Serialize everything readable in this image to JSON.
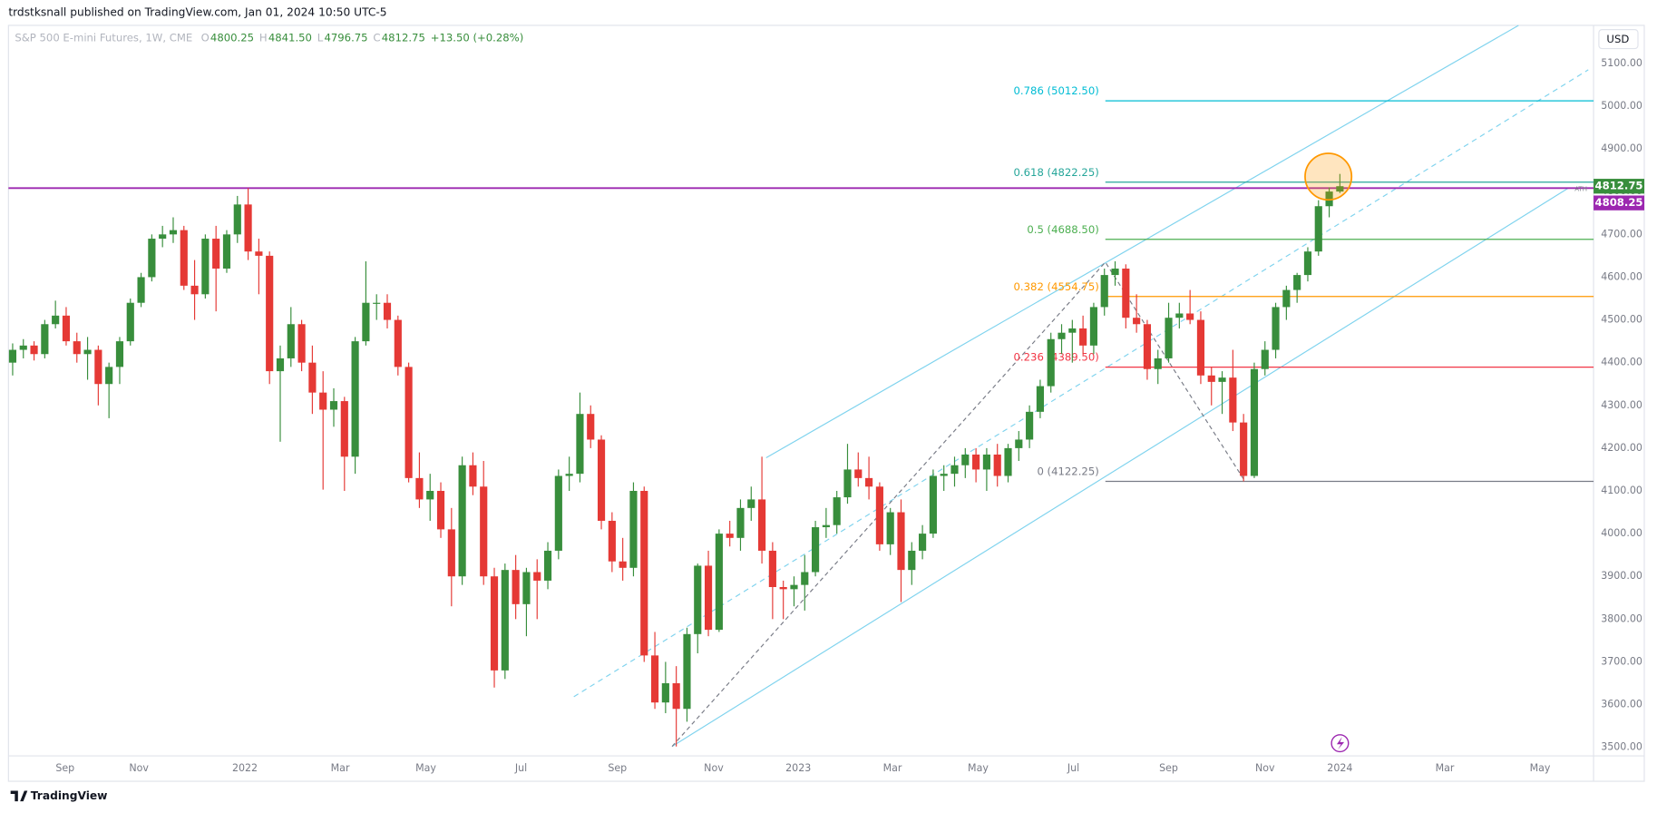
{
  "header": "trdstksnall published on TradingView.com, Jan 01, 2024 10:50 UTC-5",
  "footer": "TradingView",
  "chart_data": {
    "type": "candlestick",
    "symbol": "S&P 500 E-mini Futures, 1W, CME",
    "legend_items": [
      {
        "key": "O",
        "value": "4800.25"
      },
      {
        "key": "H",
        "value": "4841.50"
      },
      {
        "key": "L",
        "value": "4796.75"
      },
      {
        "key": "C",
        "value": "4812.75"
      }
    ],
    "change": "+13.50 (+0.28%)",
    "currency": "USD",
    "up_color": "#388e3c",
    "down_color": "#e53935",
    "xlim": [
      -0.39,
      147.7
    ],
    "xticks": [
      {
        "value": 4.9,
        "label": "Sep"
      },
      {
        "value": 11.8,
        "label": "Nov"
      },
      {
        "value": 21.7,
        "label": "2022"
      },
      {
        "value": 30.6,
        "label": "Mar"
      },
      {
        "value": 38.6,
        "label": "May"
      },
      {
        "value": 47.5,
        "label": "Jul"
      },
      {
        "value": 56.5,
        "label": "Sep"
      },
      {
        "value": 65.5,
        "label": "Nov"
      },
      {
        "value": 73.4,
        "label": "2023"
      },
      {
        "value": 82.2,
        "label": "Mar"
      },
      {
        "value": 90.2,
        "label": "May"
      },
      {
        "value": 99.1,
        "label": "Jul"
      },
      {
        "value": 108,
        "label": "Sep"
      },
      {
        "value": 117,
        "label": "Nov"
      },
      {
        "value": 124,
        "label": "2024"
      },
      {
        "value": 133.8,
        "label": "Mar"
      },
      {
        "value": 142.7,
        "label": "May"
      }
    ],
    "ylim": [
      3480,
      5189
    ],
    "yticks": [
      {
        "value": 3500,
        "label": "3500.00"
      },
      {
        "value": 3600,
        "label": "3600.00"
      },
      {
        "value": 3700,
        "label": "3700.00"
      },
      {
        "value": 3800,
        "label": "3800.00"
      },
      {
        "value": 3900,
        "label": "3900.00"
      },
      {
        "value": 4000,
        "label": "4000.00"
      },
      {
        "value": 4100,
        "label": "4100.00"
      },
      {
        "value": 4200,
        "label": "4200.00"
      },
      {
        "value": 4300,
        "label": "4300.00"
      },
      {
        "value": 4400,
        "label": "4400.00"
      },
      {
        "value": 4500,
        "label": "4500.00"
      },
      {
        "value": 4600,
        "label": "4600.00"
      },
      {
        "value": 4700,
        "label": "4700.00"
      },
      {
        "value": 4800,
        "label": "4800.00"
      },
      {
        "value": 4900,
        "label": "4900.00"
      },
      {
        "value": 5000,
        "label": "5000.00"
      },
      {
        "value": 5100,
        "label": "5100.00"
      }
    ],
    "grid": false,
    "ath": {
      "label": "ATH",
      "price": 4808.25,
      "color": "#9c27b0"
    },
    "fib_levels": [
      {
        "label": "0.786 (5012.50)",
        "price": 5012.5,
        "color": "#00bcd4"
      },
      {
        "label": "0.618 (4822.25)",
        "price": 4822.25,
        "color": "#26a69a"
      },
      {
        "label": "0.5 (4688.50)",
        "price": 4688.5,
        "color": "#4caf50"
      },
      {
        "label": "0.382 (4554.75)",
        "price": 4554.75,
        "color": "#ff9800"
      },
      {
        "label": "0.236 (4389.50)",
        "price": 4389.5,
        "color": "#f23645"
      },
      {
        "label": "0 (4122.25)",
        "price": 4122.25,
        "color": "#787b86"
      }
    ],
    "candles": [
      [
        4400,
        4445,
        4370,
        4430
      ],
      [
        4430,
        4455,
        4410,
        4440
      ],
      [
        4440,
        4450,
        4405,
        4420
      ],
      [
        4420,
        4500,
        4410,
        4490
      ],
      [
        4490,
        4545,
        4480,
        4510
      ],
      [
        4510,
        4530,
        4440,
        4450
      ],
      [
        4450,
        4470,
        4400,
        4420
      ],
      [
        4420,
        4460,
        4360,
        4430
      ],
      [
        4430,
        4440,
        4300,
        4350
      ],
      [
        4350,
        4400,
        4270,
        4390
      ],
      [
        4390,
        4460,
        4350,
        4450
      ],
      [
        4450,
        4550,
        4440,
        4540
      ],
      [
        4540,
        4610,
        4530,
        4600
      ],
      [
        4600,
        4700,
        4590,
        4690
      ],
      [
        4690,
        4720,
        4670,
        4700
      ],
      [
        4700,
        4740,
        4680,
        4710
      ],
      [
        4710,
        4720,
        4570,
        4580
      ],
      [
        4580,
        4640,
        4500,
        4560
      ],
      [
        4560,
        4700,
        4550,
        4690
      ],
      [
        4690,
        4720,
        4520,
        4620
      ],
      [
        4620,
        4710,
        4610,
        4700
      ],
      [
        4700,
        4790,
        4680,
        4770
      ],
      [
        4770,
        4808.25,
        4640,
        4660
      ],
      [
        4660,
        4690,
        4560,
        4650
      ],
      [
        4650,
        4660,
        4350,
        4380
      ],
      [
        4380,
        4440,
        4215,
        4410
      ],
      [
        4410,
        4530,
        4390,
        4490
      ],
      [
        4490,
        4500,
        4380,
        4400
      ],
      [
        4400,
        4440,
        4280,
        4330
      ],
      [
        4330,
        4380,
        4103,
        4290
      ],
      [
        4290,
        4340,
        4250,
        4310
      ],
      [
        4310,
        4320,
        4100,
        4180
      ],
      [
        4180,
        4460,
        4140,
        4450
      ],
      [
        4450,
        4637,
        4440,
        4540
      ],
      [
        4540,
        4560,
        4500,
        4540
      ],
      [
        4540,
        4560,
        4480,
        4500
      ],
      [
        4500,
        4510,
        4370,
        4390
      ],
      [
        4390,
        4400,
        4120,
        4130
      ],
      [
        4130,
        4190,
        4060,
        4080
      ],
      [
        4080,
        4140,
        4030,
        4100
      ],
      [
        4100,
        4120,
        3990,
        4010
      ],
      [
        4010,
        4060,
        3830,
        3900
      ],
      [
        3900,
        4180,
        3880,
        4160
      ],
      [
        4160,
        4190,
        4090,
        4110
      ],
      [
        4110,
        4170,
        3880,
        3900
      ],
      [
        3900,
        3920,
        3640,
        3680
      ],
      [
        3680,
        3930,
        3660,
        3915
      ],
      [
        3915,
        3950,
        3800,
        3835
      ],
      [
        3835,
        3920,
        3760,
        3910
      ],
      [
        3910,
        3940,
        3800,
        3890
      ],
      [
        3890,
        3980,
        3870,
        3960
      ],
      [
        3960,
        4150,
        3940,
        4135
      ],
      [
        4135,
        4180,
        4100,
        4140
      ],
      [
        4140,
        4330,
        4120,
        4280
      ],
      [
        4280,
        4300,
        4200,
        4220
      ],
      [
        4220,
        4230,
        4010,
        4030
      ],
      [
        4030,
        4050,
        3910,
        3935
      ],
      [
        3935,
        3990,
        3890,
        3920
      ],
      [
        3920,
        4120,
        3900,
        4100
      ],
      [
        4100,
        4110,
        3700,
        3715
      ],
      [
        3715,
        3770,
        3590,
        3605
      ],
      [
        3605,
        3700,
        3580,
        3650
      ],
      [
        3650,
        3690,
        3502,
        3590
      ],
      [
        3590,
        3780,
        3560,
        3765
      ],
      [
        3765,
        3930,
        3720,
        3925
      ],
      [
        3925,
        3960,
        3760,
        3775
      ],
      [
        3775,
        4010,
        3770,
        4000
      ],
      [
        4000,
        4030,
        3970,
        3990
      ],
      [
        3990,
        4080,
        3960,
        4060
      ],
      [
        4060,
        4110,
        4030,
        4080
      ],
      [
        4080,
        4180,
        3930,
        3960
      ],
      [
        3960,
        3980,
        3800,
        3875
      ],
      [
        3875,
        3890,
        3800,
        3870
      ],
      [
        3870,
        3900,
        3830,
        3880
      ],
      [
        3880,
        3950,
        3820,
        3910
      ],
      [
        3910,
        4030,
        3900,
        4015
      ],
      [
        4015,
        4060,
        3990,
        4020
      ],
      [
        4020,
        4100,
        4000,
        4085
      ],
      [
        4085,
        4210,
        4070,
        4150
      ],
      [
        4150,
        4190,
        4110,
        4130
      ],
      [
        4130,
        4180,
        4080,
        4110
      ],
      [
        4110,
        4120,
        3960,
        3975
      ],
      [
        3975,
        4060,
        3950,
        4050
      ],
      [
        4050,
        4080,
        3840,
        3915
      ],
      [
        3915,
        3980,
        3880,
        3960
      ],
      [
        3960,
        4020,
        3940,
        4000
      ],
      [
        4000,
        4150,
        3990,
        4135
      ],
      [
        4135,
        4160,
        4100,
        4140
      ],
      [
        4140,
        4180,
        4110,
        4160
      ],
      [
        4160,
        4200,
        4130,
        4185
      ],
      [
        4185,
        4200,
        4120,
        4150
      ],
      [
        4150,
        4200,
        4100,
        4185
      ],
      [
        4185,
        4210,
        4110,
        4135
      ],
      [
        4135,
        4210,
        4120,
        4200
      ],
      [
        4200,
        4240,
        4170,
        4220
      ],
      [
        4220,
        4300,
        4200,
        4285
      ],
      [
        4285,
        4360,
        4270,
        4345
      ],
      [
        4345,
        4470,
        4330,
        4455
      ],
      [
        4455,
        4490,
        4420,
        4470
      ],
      [
        4470,
        4500,
        4400,
        4480
      ],
      [
        4480,
        4510,
        4420,
        4440
      ],
      [
        4440,
        4540,
        4420,
        4530
      ],
      [
        4530,
        4620,
        4510,
        4605
      ],
      [
        4605,
        4637,
        4580,
        4620
      ],
      [
        4620,
        4630,
        4480,
        4505
      ],
      [
        4505,
        4560,
        4470,
        4490
      ],
      [
        4490,
        4500,
        4360,
        4385
      ],
      [
        4385,
        4430,
        4350,
        4410
      ],
      [
        4410,
        4540,
        4400,
        4505
      ],
      [
        4505,
        4540,
        4480,
        4515
      ],
      [
        4515,
        4570,
        4490,
        4500
      ],
      [
        4500,
        4520,
        4350,
        4370
      ],
      [
        4370,
        4390,
        4300,
        4355
      ],
      [
        4355,
        4380,
        4280,
        4365
      ],
      [
        4365,
        4430,
        4240,
        4260
      ],
      [
        4260,
        4280,
        4122.25,
        4135
      ],
      [
        4135,
        4400,
        4130,
        4385
      ],
      [
        4385,
        4450,
        4370,
        4430
      ],
      [
        4430,
        4540,
        4410,
        4530
      ],
      [
        4530,
        4580,
        4500,
        4570
      ],
      [
        4570,
        4610,
        4540,
        4605
      ],
      [
        4605,
        4670,
        4590,
        4660
      ],
      [
        4660,
        4780,
        4650,
        4766
      ],
      [
        4766,
        4810,
        4740,
        4800.25
      ],
      [
        4800.25,
        4841.5,
        4796.75,
        4812.75
      ]
    ]
  }
}
